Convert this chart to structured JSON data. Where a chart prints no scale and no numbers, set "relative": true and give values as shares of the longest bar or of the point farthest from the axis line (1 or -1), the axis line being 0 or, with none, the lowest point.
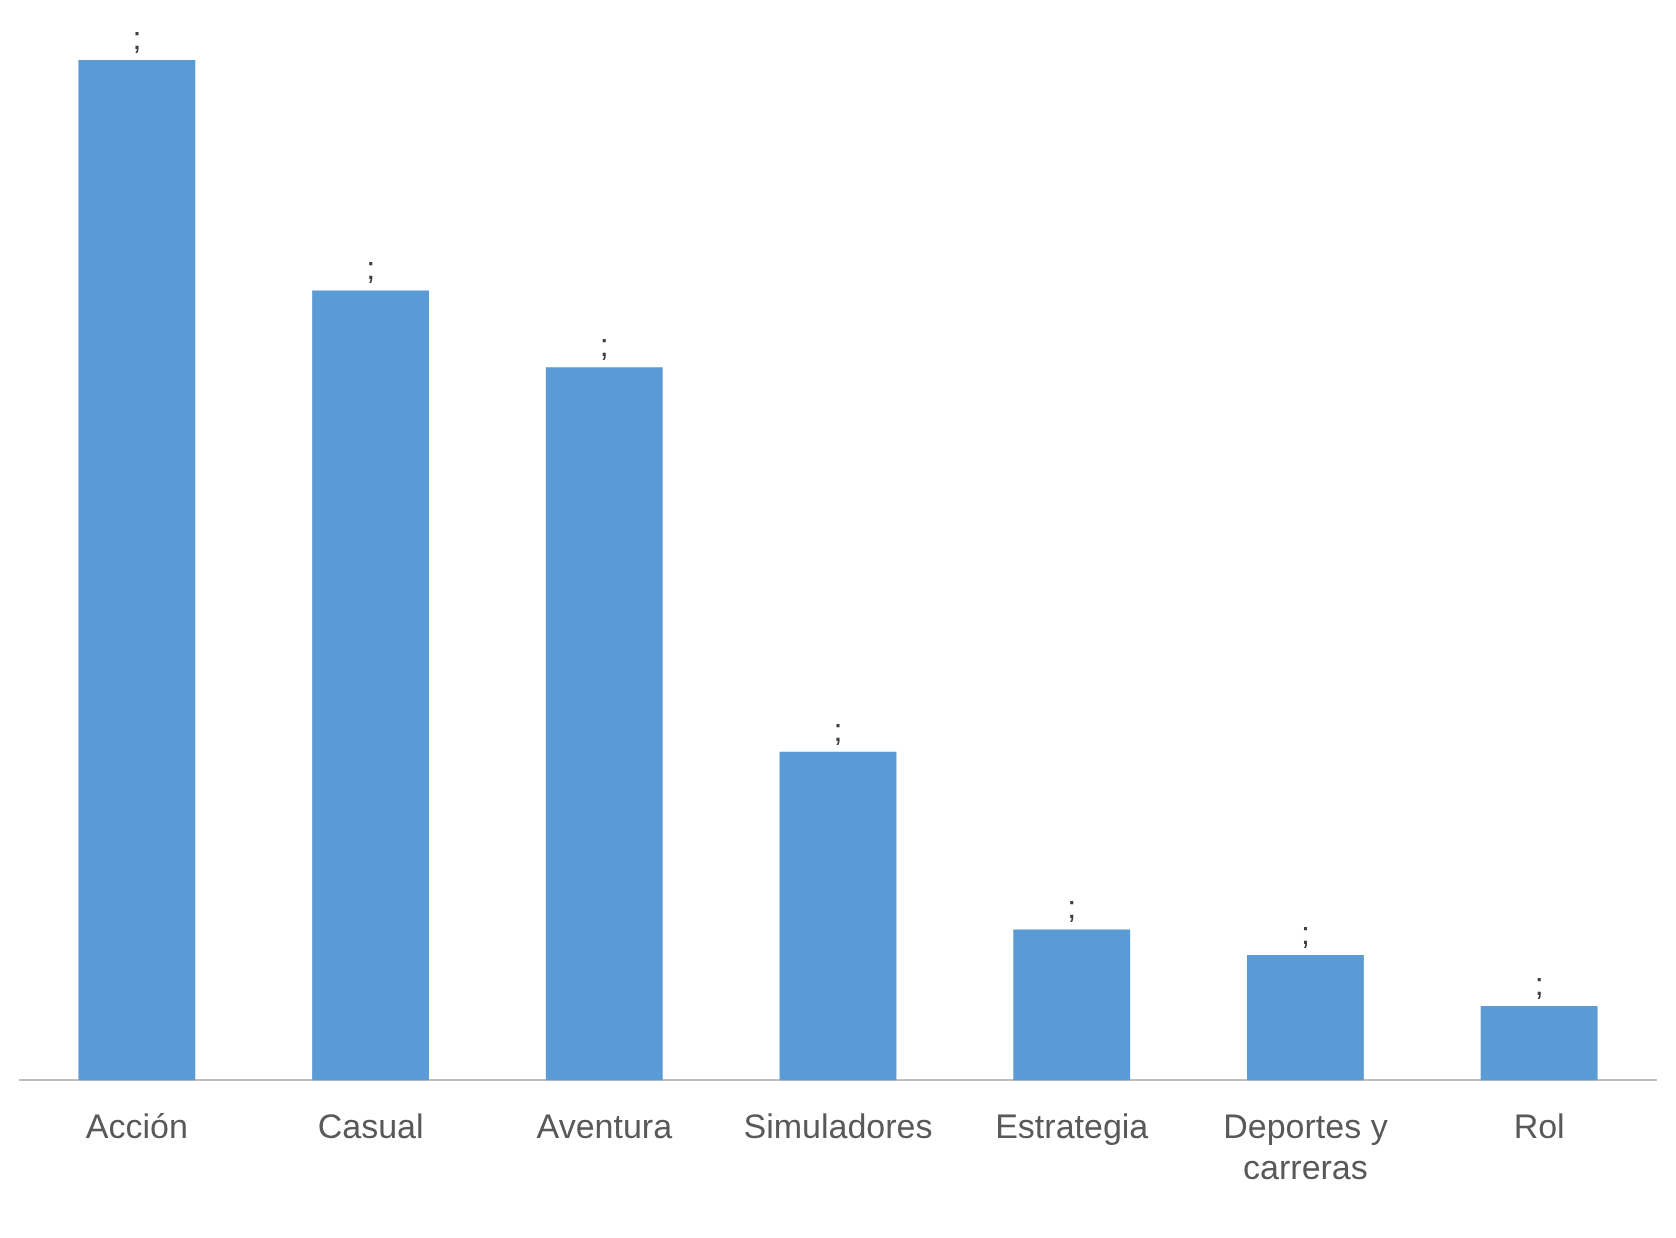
{
  "chart_data": {
    "type": "bar",
    "relative": true,
    "categories": [
      "Acción",
      "Casual",
      "Aventura",
      "Simuladores",
      "Estrategia",
      "Deportes y carreras",
      "Rol"
    ],
    "values": [
      1,
      0.774,
      0.699,
      0.322,
      0.148,
      0.123,
      0.073
    ],
    "annotations": [
      {
        "text": ";",
        "x": "Acción",
        "y": 1
      },
      {
        "text": ";",
        "x": "Casual",
        "y": 0.774
      },
      {
        "text": ";",
        "x": "Aventura",
        "y": 0.699
      },
      {
        "text": ";",
        "x": "Simuladores",
        "y": 0.322
      },
      {
        "text": ";",
        "x": "Estrategia",
        "y": 0.148
      },
      {
        "text": ";",
        "x": "Deportes y carreras",
        "y": 0.123
      },
      {
        "text": ";",
        "x": "Rol",
        "y": 0.073
      }
    ],
    "color": "#5b9bd5",
    "grid": false,
    "legend": false
  }
}
